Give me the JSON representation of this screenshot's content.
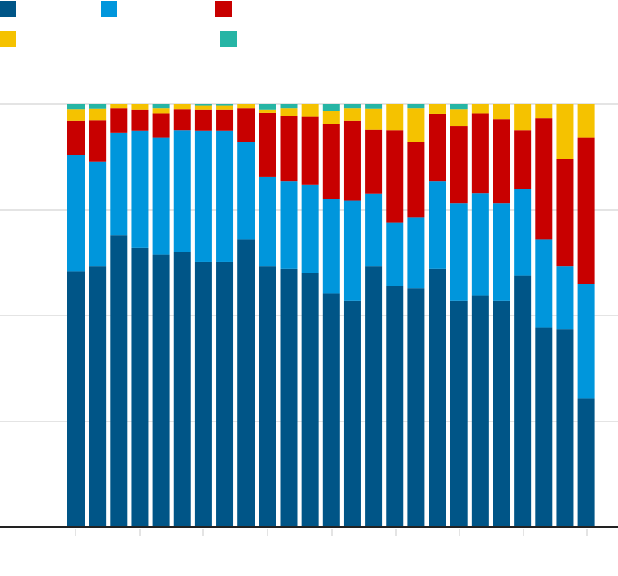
{
  "chart_data": {
    "type": "bar",
    "stacked": true,
    "normalized": true,
    "title": "",
    "xlabel": "",
    "ylabel": "",
    "ylim": [
      0,
      1
    ],
    "grid": true,
    "legend_position": "top-left",
    "category_count": 25,
    "categories": [
      "",
      "",
      "",
      "",
      "",
      "",
      "",
      "",
      "",
      "",
      "",
      "",
      "",
      "",
      "",
      "",
      "",
      "",
      "",
      "",
      "",
      "",
      "",
      "",
      ""
    ],
    "series": [
      {
        "color": "#005587",
        "values": [
          0.605,
          0.617,
          0.69,
          0.66,
          0.645,
          0.65,
          0.627,
          0.627,
          0.68,
          0.617,
          0.61,
          0.6,
          0.553,
          0.535,
          0.617,
          0.57,
          0.565,
          0.61,
          0.535,
          0.547,
          0.535,
          0.595,
          0.472,
          0.467,
          0.305
        ]
      },
      {
        "color": "#0096DC",
        "values": [
          0.275,
          0.247,
          0.243,
          0.277,
          0.275,
          0.288,
          0.31,
          0.31,
          0.23,
          0.212,
          0.207,
          0.21,
          0.222,
          0.237,
          0.172,
          0.15,
          0.167,
          0.207,
          0.23,
          0.243,
          0.23,
          0.205,
          0.208,
          0.15,
          0.27
        ]
      },
      {
        "color": "#C80000",
        "values": [
          0.08,
          0.097,
          0.057,
          0.05,
          0.058,
          0.05,
          0.05,
          0.05,
          0.08,
          0.15,
          0.155,
          0.16,
          0.178,
          0.188,
          0.15,
          0.218,
          0.178,
          0.16,
          0.183,
          0.188,
          0.2,
          0.138,
          0.287,
          0.253,
          0.345
        ]
      },
      {
        "color": "#F5C200",
        "values": [
          0.028,
          0.028,
          0.01,
          0.013,
          0.012,
          0.012,
          0.01,
          0.01,
          0.01,
          0.008,
          0.018,
          0.03,
          0.03,
          0.03,
          0.05,
          0.062,
          0.08,
          0.023,
          0.04,
          0.022,
          0.035,
          0.062,
          0.033,
          0.13,
          0.08
        ]
      },
      {
        "color": "#26B5A5",
        "values": [
          0.012,
          0.011,
          0.0,
          0.0,
          0.01,
          0.0,
          0.003,
          0.003,
          0.0,
          0.013,
          0.01,
          0.0,
          0.017,
          0.01,
          0.011,
          0.0,
          0.01,
          0.0,
          0.012,
          0.0,
          0.0,
          0.0,
          0.0,
          0.0,
          0.0
        ]
      }
    ]
  }
}
